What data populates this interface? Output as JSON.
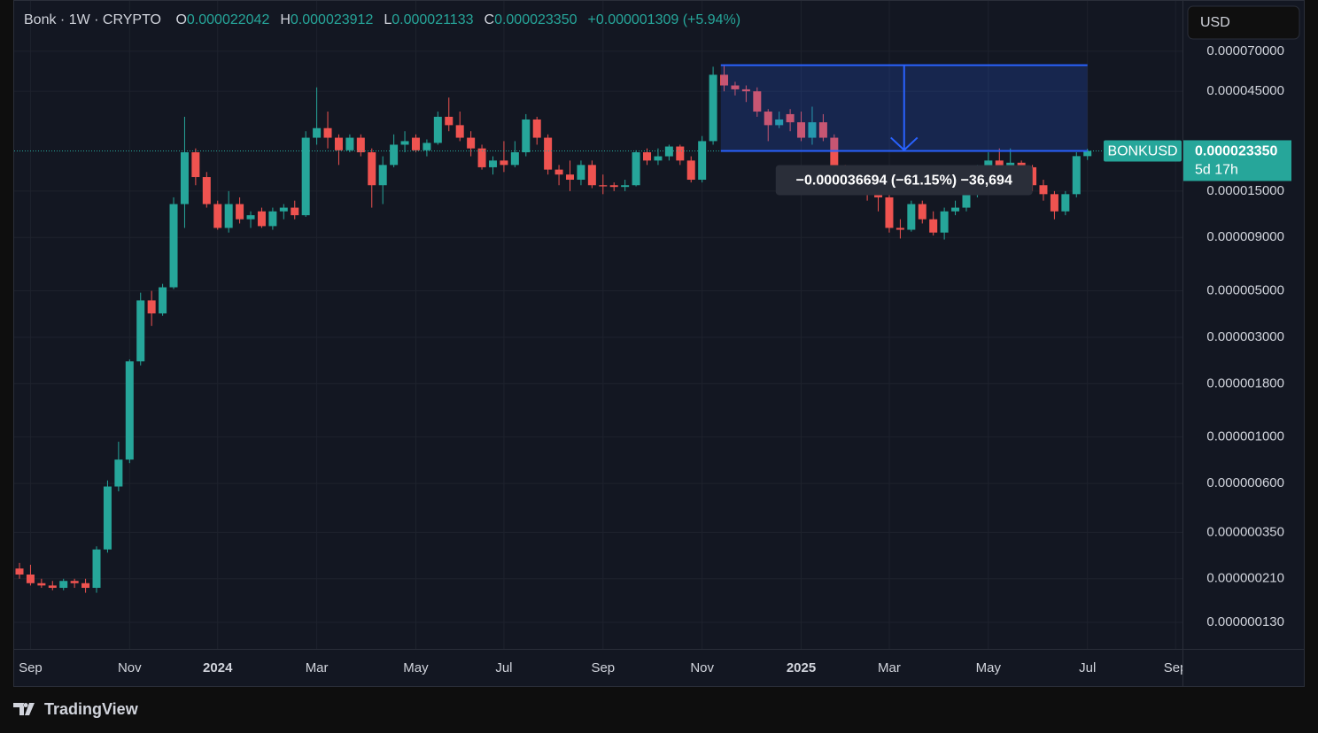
{
  "legend": {
    "title": "Bonk · 1W · CRYPTO",
    "items": [
      {
        "label": "O",
        "value": "0.000022042"
      },
      {
        "label": "H",
        "value": "0.000023912"
      },
      {
        "label": "L",
        "value": "0.000021133"
      },
      {
        "label": "C",
        "value": "0.000023350"
      }
    ],
    "change": "+0.000001309 (+5.94%)"
  },
  "currency": "USD",
  "price_tag": {
    "symbol": "BONKUSD",
    "price": "0.000023350",
    "countdown": "5d 17h"
  },
  "measure": {
    "from": 6.0044e-05,
    "to": 2.335e-05,
    "label": "−0.000036694 (−61.15%) −36,694"
  },
  "footer": {
    "brand": "TradingView"
  },
  "chart_data": {
    "type": "candlestick",
    "log_scale": true,
    "grid": true,
    "up_color": "#26a69a",
    "down_color": "#ef5350",
    "ylim": [
      9.7e-08,
      0.000123
    ],
    "yticks": [
      {
        "value": 7e-05,
        "label": "0.000070000"
      },
      {
        "value": 4.5e-05,
        "label": "0.000045000"
      },
      {
        "value": 1.5e-05,
        "label": "0.000015000"
      },
      {
        "value": 9e-06,
        "label": "0.000009000"
      },
      {
        "value": 5e-06,
        "label": "0.000005000"
      },
      {
        "value": 3e-06,
        "label": "0.000003000"
      },
      {
        "value": 1.8e-06,
        "label": "0.000001800"
      },
      {
        "value": 1e-06,
        "label": "0.000001000"
      },
      {
        "value": 6e-07,
        "label": "0.000000600"
      },
      {
        "value": 3.5e-07,
        "label": "0.000000350"
      },
      {
        "value": 2.1e-07,
        "label": "0.000000210"
      },
      {
        "value": 1.3e-07,
        "label": "0.000000130"
      }
    ],
    "categories": [
      null,
      "Sep",
      null,
      null,
      null,
      null,
      null,
      null,
      null,
      null,
      "Nov",
      null,
      null,
      null,
      null,
      null,
      null,
      null,
      "2024",
      null,
      null,
      null,
      null,
      null,
      null,
      null,
      null,
      "Mar",
      null,
      null,
      null,
      null,
      null,
      null,
      null,
      null,
      "May",
      null,
      null,
      null,
      null,
      null,
      null,
      null,
      "Jul",
      null,
      null,
      null,
      null,
      null,
      null,
      null,
      null,
      "Sep",
      null,
      null,
      null,
      null,
      null,
      null,
      null,
      null,
      "Nov",
      null,
      null,
      null,
      null,
      null,
      null,
      null,
      null,
      "2025",
      null,
      null,
      null,
      null,
      null,
      null,
      null,
      "Mar",
      null,
      null,
      null,
      null,
      null,
      null,
      null,
      null,
      "May",
      null,
      null,
      null,
      null,
      null,
      null,
      null,
      null,
      "Jul",
      null,
      null,
      null,
      null,
      null,
      null,
      null,
      "Sep"
    ],
    "open": [
      2.35e-07,
      2.2e-07,
      2e-07,
      1.95e-07,
      1.9e-07,
      2.05e-07,
      2e-07,
      1.9e-07,
      2.9e-07,
      5.8e-07,
      7.8e-07,
      2.3e-06,
      4.5e-06,
      3.9e-06,
      5.2e-06,
      1.3e-05,
      2.3e-05,
      1.75e-05,
      1.3e-05,
      1e-05,
      1.3e-05,
      1.1e-05,
      1.2e-05,
      1.02e-05,
      1.2e-05,
      1.25e-05,
      1.15e-05,
      2.7e-05,
      3e-05,
      2.7e-05,
      2.35e-05,
      2.7e-05,
      2.3e-05,
      1.6e-05,
      2e-05,
      2.5e-05,
      2.7e-05,
      2.35e-05,
      2.55e-05,
      3.4e-05,
      3.1e-05,
      2.7e-05,
      2.4e-05,
      1.95e-05,
      2.1e-05,
      2e-05,
      2.3e-05,
      3.3e-05,
      2.7e-05,
      1.9e-05,
      1.8e-05,
      1.7e-05,
      2e-05,
      1.6e-05,
      1.6e-05,
      1.57e-05,
      1.6e-05,
      2.3e-05,
      2.1e-05,
      2.2e-05,
      2.45e-05,
      2.1e-05,
      1.7e-05,
      2.6e-05,
      5.4e-05,
      4.8e-05,
      4.6e-05,
      4.5e-05,
      3.6e-05,
      3.1e-05,
      3.5e-05,
      3.2e-05,
      2.7e-05,
      3.2e-05,
      2.7e-05,
      1.95e-05,
      1.8e-05,
      1.6e-05,
      1.5e-05,
      1.4e-05,
      1e-05,
      9.8e-06,
      1.3e-05,
      1.1e-05,
      9.5e-06,
      1.2e-05,
      1.25e-05,
      1.45e-05,
      1.9e-05,
      2.1e-05,
      1.95e-05,
      2.05e-05,
      1.95e-05,
      1.6e-05,
      1.45e-05,
      1.2e-05,
      1.45e-05,
      2.2042e-05,
      null,
      null,
      null,
      null,
      null,
      null,
      null,
      null
    ],
    "high": [
      2.5e-07,
      2.45e-07,
      2.1e-07,
      2.05e-07,
      2.1e-07,
      2.1e-07,
      2.1e-07,
      3e-07,
      6.2e-07,
      9.5e-07,
      2.35e-06,
      4.9e-06,
      5e-06,
      5.4e-06,
      1.4e-05,
      3.4e-05,
      2.4e-05,
      1.85e-05,
      1.35e-05,
      1.5e-05,
      1.4e-05,
      1.2e-05,
      1.25e-05,
      1.25e-05,
      1.3e-05,
      1.35e-05,
      2.9e-05,
      4.7e-05,
      3.6e-05,
      2.8e-05,
      2.8e-05,
      2.8e-05,
      2.4e-05,
      2.2e-05,
      2.8e-05,
      2.9e-05,
      2.8e-05,
      2.65e-05,
      3.6e-05,
      4.2e-05,
      3.6e-05,
      2.9e-05,
      2.5e-05,
      2.2e-05,
      2.6e-05,
      2.6e-05,
      3.5e-05,
      3.4e-05,
      2.8e-05,
      2e-05,
      2.1e-05,
      2.1e-05,
      2.1e-05,
      1.8e-05,
      1.65e-05,
      1.7e-05,
      2.35e-05,
      2.4e-05,
      2.4e-05,
      2.5e-05,
      2.5e-05,
      2.2e-05,
      2.75e-05,
      5.9e-05,
      6e-05,
      5e-05,
      4.8e-05,
      4.7e-05,
      3.7e-05,
      3.6e-05,
      3.7e-05,
      3.6e-05,
      3.8e-05,
      3.5e-05,
      2.8e-05,
      2e-05,
      1.9e-05,
      1.7e-05,
      1.6e-05,
      1.5e-05,
      1.1e-05,
      1.35e-05,
      1.35e-05,
      1.2e-05,
      1.25e-05,
      1.35e-05,
      1.5e-05,
      2e-05,
      2.3e-05,
      2.4e-05,
      2.4e-05,
      2.1e-05,
      2e-05,
      1.7e-05,
      1.5e-05,
      1.5e-05,
      2.3e-05,
      2.3912e-05,
      null,
      null,
      null,
      null,
      null,
      null,
      null,
      null
    ],
    "low": [
      2.1e-07,
      1.95e-07,
      1.9e-07,
      1.85e-07,
      1.85e-07,
      1.9e-07,
      1.8e-07,
      1.8e-07,
      2.8e-07,
      5.5e-07,
      7.5e-07,
      2.2e-06,
      3.4e-06,
      3.8e-06,
      5.1e-06,
      1e-05,
      1.6e-05,
      1.25e-05,
      9.8e-06,
      9.5e-06,
      1.05e-05,
      1e-05,
      1e-05,
      9.8e-06,
      1.1e-05,
      1.1e-05,
      1.13e-05,
      2.5e-05,
      2.4e-05,
      2e-05,
      2.3e-05,
      2.2e-05,
      1.25e-05,
      1.3e-05,
      1.95e-05,
      2.3e-05,
      2.3e-05,
      2.2e-05,
      2.5e-05,
      2.9e-05,
      2.6e-05,
      2.2e-05,
      1.9e-05,
      1.8e-05,
      1.85e-05,
      1.95e-05,
      2.2e-05,
      2.5e-05,
      1.8e-05,
      1.6e-05,
      1.5e-05,
      1.6e-05,
      1.55e-05,
      1.45e-05,
      1.5e-05,
      1.5e-05,
      1.58e-05,
      2e-05,
      2e-05,
      2.1e-05,
      2e-05,
      1.65e-05,
      1.65e-05,
      2.5e-05,
      4.5e-05,
      4.3e-05,
      4e-05,
      3.4e-05,
      2.6e-05,
      3e-05,
      2.9e-05,
      2.6e-05,
      2.5e-05,
      2.6e-05,
      1.9e-05,
      1.6e-05,
      1.5e-05,
      1.35e-05,
      1.2e-05,
      9.5e-06,
      8.9e-06,
      9.6e-06,
      1.05e-05,
      9.2e-06,
      8.8e-06,
      1.15e-05,
      1.2e-05,
      1.4e-05,
      1.8e-05,
      1.85e-05,
      1.9e-05,
      1.75e-05,
      1.5e-05,
      1.35e-05,
      1.1e-05,
      1.15e-05,
      1.4e-05,
      2.1133e-05,
      null,
      null,
      null,
      null,
      null,
      null,
      null,
      null
    ],
    "close": [
      2.2e-07,
      2e-07,
      1.95e-07,
      1.9e-07,
      2.05e-07,
      2e-07,
      1.9e-07,
      2.9e-07,
      5.8e-07,
      7.8e-07,
      2.3e-06,
      4.5e-06,
      3.9e-06,
      5.2e-06,
      1.3e-05,
      2.3e-05,
      1.75e-05,
      1.3e-05,
      1e-05,
      1.3e-05,
      1.1e-05,
      1.15e-05,
      1.02e-05,
      1.2e-05,
      1.25e-05,
      1.15e-05,
      2.7e-05,
      3e-05,
      2.7e-05,
      2.35e-05,
      2.7e-05,
      2.3e-05,
      1.6e-05,
      2e-05,
      2.5e-05,
      2.6e-05,
      2.35e-05,
      2.55e-05,
      3.4e-05,
      3.1e-05,
      2.7e-05,
      2.4e-05,
      1.95e-05,
      2.1e-05,
      2e-05,
      2.3e-05,
      3.3e-05,
      2.7e-05,
      1.9e-05,
      1.8e-05,
      1.7e-05,
      2e-05,
      1.6e-05,
      1.58e-05,
      1.57e-05,
      1.6e-05,
      2.3e-05,
      2.1e-05,
      2.2e-05,
      2.45e-05,
      2.1e-05,
      1.7e-05,
      2.6e-05,
      5.4e-05,
      4.8e-05,
      4.6e-05,
      4.5e-05,
      3.6e-05,
      3.1e-05,
      3.3e-05,
      3.2e-05,
      2.7e-05,
      3.2e-05,
      2.7e-05,
      1.95e-05,
      1.8e-05,
      1.6e-05,
      1.5e-05,
      1.4e-05,
      1e-05,
      9.8e-06,
      1.3e-05,
      1.1e-05,
      9.5e-06,
      1.2e-05,
      1.25e-05,
      1.45e-05,
      1.9e-05,
      2.1e-05,
      1.95e-05,
      2.05e-05,
      1.95e-05,
      1.6e-05,
      1.45e-05,
      1.2e-05,
      1.45e-05,
      2.2042e-05,
      2.335e-05,
      null,
      null,
      null,
      null,
      null,
      null,
      null,
      null
    ]
  }
}
